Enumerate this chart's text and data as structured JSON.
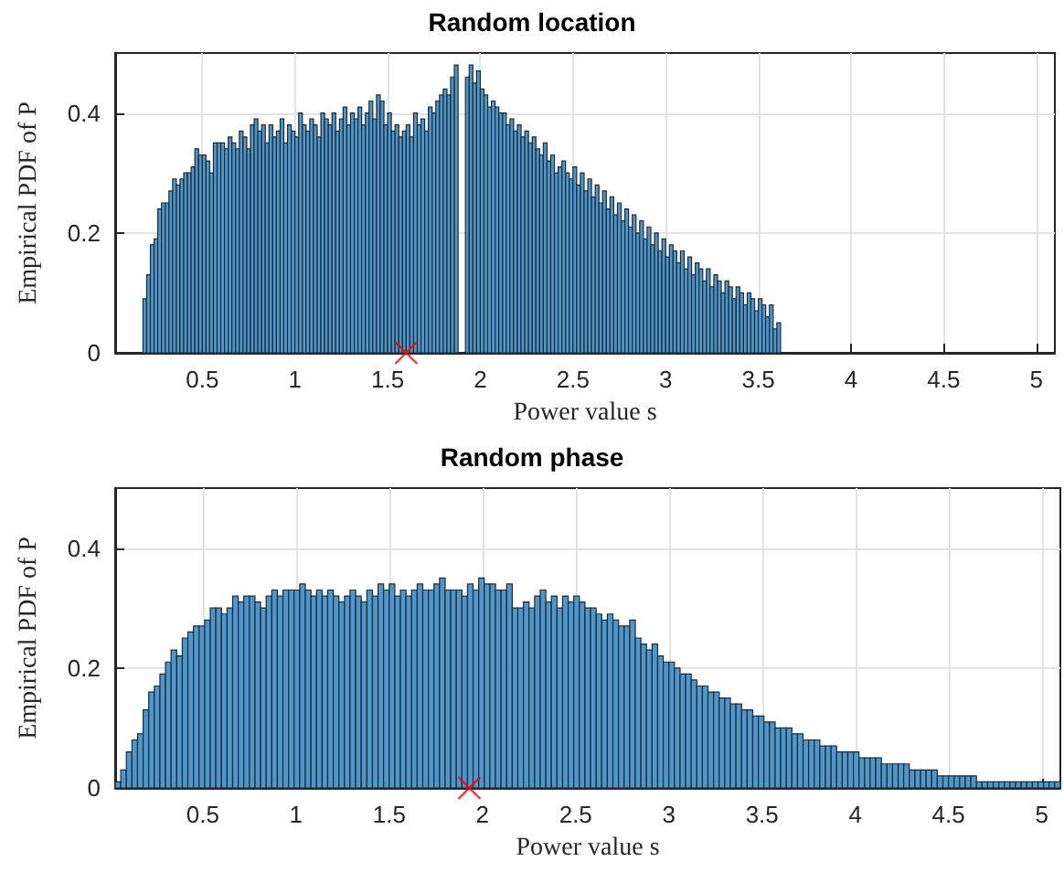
{
  "chart_data": [
    {
      "type": "histogram",
      "title": "Random location",
      "xlabel": "Power value s",
      "ylabel": "Empirical PDF of P",
      "xlim": [
        0.03,
        5.1
      ],
      "ylim": [
        0,
        0.5
      ],
      "xticks": [
        0.5,
        1,
        1.5,
        2,
        2.5,
        3,
        3.5,
        4,
        4.5,
        5
      ],
      "yticks": [
        0,
        0.2,
        0.4
      ],
      "grid": true,
      "series": [
        {
          "color": "#4d97cc",
          "bins": [
            0.18,
            0.2,
            0.22,
            0.24,
            0.26,
            0.28,
            0.3,
            0.32,
            0.34,
            0.36,
            0.38,
            0.4,
            0.42,
            0.44,
            0.46,
            0.48,
            0.5,
            0.52,
            0.54,
            0.56,
            0.58,
            0.6,
            0.62,
            0.64,
            0.66,
            0.68,
            0.7,
            0.72,
            0.74,
            0.76,
            0.78,
            0.8,
            0.82,
            0.84,
            0.86,
            0.88,
            0.9,
            0.92,
            0.94,
            0.96,
            0.98,
            1,
            1.02,
            1.04,
            1.06,
            1.08,
            1.1,
            1.12,
            1.14,
            1.16,
            1.18,
            1.2,
            1.22,
            1.24,
            1.26,
            1.28,
            1.3,
            1.32,
            1.34,
            1.36,
            1.38,
            1.4,
            1.42,
            1.44,
            1.46,
            1.48,
            1.5,
            1.52,
            1.54,
            1.56,
            1.58,
            1.6,
            1.62,
            1.64,
            1.66,
            1.68,
            1.7,
            1.72,
            1.74,
            1.76,
            1.78,
            1.8,
            1.82,
            1.84,
            1.86,
            1.88,
            1.9,
            1.92,
            1.94,
            1.96,
            1.98,
            2,
            2.02,
            2.04,
            2.06,
            2.08,
            2.1,
            2.12,
            2.14,
            2.16,
            2.18,
            2.2,
            2.22,
            2.24,
            2.26,
            2.28,
            2.3,
            2.32,
            2.34,
            2.36,
            2.38,
            2.4,
            2.42,
            2.44,
            2.46,
            2.48,
            2.5,
            2.52,
            2.54,
            2.56,
            2.58,
            2.6,
            2.62,
            2.64,
            2.66,
            2.68,
            2.7,
            2.72,
            2.74,
            2.76,
            2.78,
            2.8,
            2.82,
            2.84,
            2.86,
            2.88,
            2.9,
            2.92,
            2.94,
            2.96,
            2.98,
            3,
            3.02,
            3.04,
            3.06,
            3.08,
            3.1,
            3.12,
            3.14,
            3.16,
            3.18,
            3.2,
            3.22,
            3.24,
            3.26,
            3.28,
            3.3,
            3.32,
            3.34,
            3.36,
            3.38,
            3.4,
            3.42,
            3.44,
            3.46,
            3.48,
            3.5,
            3.52,
            3.54,
            3.56,
            3.58,
            3.6,
            3.62
          ],
          "values": [
            0.09,
            0.13,
            0.18,
            0.19,
            0.24,
            0.25,
            0.25,
            0.27,
            0.29,
            0.28,
            0.29,
            0.3,
            0.3,
            0.31,
            0.34,
            0.33,
            0.33,
            0.32,
            0.3,
            0.35,
            0.35,
            0.35,
            0.34,
            0.36,
            0.35,
            0.34,
            0.37,
            0.36,
            0.34,
            0.38,
            0.39,
            0.37,
            0.38,
            0.35,
            0.38,
            0.36,
            0.37,
            0.39,
            0.35,
            0.38,
            0.37,
            0.36,
            0.4,
            0.38,
            0.37,
            0.39,
            0.38,
            0.36,
            0.4,
            0.39,
            0.38,
            0.4,
            0.37,
            0.39,
            0.41,
            0.38,
            0.4,
            0.39,
            0.41,
            0.38,
            0.4,
            0.42,
            0.39,
            0.43,
            0.42,
            0.38,
            0.4,
            0.37,
            0.38,
            0.36,
            0.37,
            0.38,
            0.36,
            0.4,
            0.38,
            0.39,
            0.37,
            0.41,
            0.4,
            0.42,
            0.43,
            0.44,
            0.43,
            0.46,
            0.48,
            null,
            null,
            0.46,
            0.48,
            0.45,
            0.47,
            0.44,
            0.43,
            0.41,
            0.42,
            0.41,
            0.4,
            0.4,
            0.38,
            0.39,
            0.37,
            0.38,
            0.36,
            0.37,
            0.35,
            0.36,
            0.34,
            0.33,
            0.35,
            0.32,
            0.33,
            0.3,
            0.31,
            0.32,
            0.3,
            0.29,
            0.31,
            0.28,
            0.3,
            0.27,
            0.29,
            0.26,
            0.28,
            0.25,
            0.27,
            0.24,
            0.26,
            0.23,
            0.25,
            0.22,
            0.24,
            0.21,
            0.23,
            0.2,
            0.22,
            0.19,
            0.21,
            0.18,
            0.2,
            0.17,
            0.19,
            0.16,
            0.18,
            0.17,
            0.15,
            0.17,
            0.14,
            0.16,
            0.13,
            0.15,
            0.14,
            0.12,
            0.14,
            0.11,
            0.13,
            0.12,
            0.1,
            0.12,
            0.11,
            0.09,
            0.11,
            0.1,
            0.08,
            0.1,
            0.09,
            0.07,
            0.09,
            0.08,
            0.06,
            0.08,
            0.04,
            0.05
          ]
        },
        {
          "type": "scatter",
          "x": [
            1.6
          ],
          "values": [
            0
          ],
          "color": "#ff0000",
          "marker": "cross"
        }
      ]
    },
    {
      "type": "histogram",
      "title": "Random phase",
      "xlabel": "Power value s",
      "ylabel": "Empirical PDF of P",
      "xlim": [
        0.03,
        5.1
      ],
      "ylim": [
        0,
        0.5
      ],
      "xticks": [
        0.5,
        1,
        1.5,
        2,
        2.5,
        3,
        3.5,
        4,
        4.5,
        5
      ],
      "yticks": [
        0,
        0.2,
        0.4
      ],
      "grid": true,
      "series": [
        {
          "color": "#4d97cc",
          "bins": [
            0.03,
            0.06,
            0.09,
            0.12,
            0.15,
            0.18,
            0.21,
            0.24,
            0.27,
            0.3,
            0.33,
            0.36,
            0.39,
            0.42,
            0.45,
            0.48,
            0.51,
            0.54,
            0.57,
            0.6,
            0.63,
            0.66,
            0.69,
            0.72,
            0.75,
            0.78,
            0.81,
            0.84,
            0.87,
            0.9,
            0.93,
            0.96,
            0.99,
            1.02,
            1.05,
            1.08,
            1.11,
            1.14,
            1.17,
            1.2,
            1.23,
            1.26,
            1.29,
            1.32,
            1.35,
            1.38,
            1.41,
            1.44,
            1.47,
            1.5,
            1.53,
            1.56,
            1.59,
            1.62,
            1.65,
            1.68,
            1.71,
            1.74,
            1.77,
            1.8,
            1.83,
            1.86,
            1.89,
            1.92,
            1.95,
            1.98,
            2.01,
            2.04,
            2.07,
            2.1,
            2.13,
            2.16,
            2.19,
            2.22,
            2.25,
            2.28,
            2.31,
            2.34,
            2.37,
            2.4,
            2.43,
            2.46,
            2.49,
            2.52,
            2.55,
            2.58,
            2.61,
            2.64,
            2.67,
            2.7,
            2.73,
            2.76,
            2.79,
            2.82,
            2.85,
            2.88,
            2.91,
            2.94,
            2.97,
            3,
            3.03,
            3.06,
            3.09,
            3.12,
            3.15,
            3.18,
            3.21,
            3.24,
            3.27,
            3.3,
            3.33,
            3.36,
            3.39,
            3.42,
            3.45,
            3.48,
            3.51,
            3.54,
            3.57,
            3.6,
            3.63,
            3.66,
            3.69,
            3.72,
            3.75,
            3.78,
            3.81,
            3.84,
            3.87,
            3.9,
            3.93,
            3.96,
            3.99,
            4.02,
            4.05,
            4.08,
            4.11,
            4.14,
            4.17,
            4.2,
            4.23,
            4.26,
            4.29,
            4.32,
            4.35,
            4.38,
            4.41,
            4.44,
            4.47,
            4.5,
            4.53,
            4.56,
            4.59,
            4.62,
            4.65,
            4.68,
            4.71,
            4.74,
            4.77,
            4.8,
            4.83,
            4.86,
            4.89,
            4.92,
            4.95,
            4.98,
            5.01,
            5.04,
            5.07,
            5.1
          ],
          "values": [
            0.01,
            0.03,
            0.06,
            0.08,
            0.09,
            0.13,
            0.16,
            0.17,
            0.19,
            0.21,
            0.23,
            0.22,
            0.25,
            0.26,
            0.27,
            0.27,
            0.28,
            0.3,
            0.3,
            0.29,
            0.3,
            0.32,
            0.31,
            0.32,
            0.32,
            0.31,
            0.3,
            0.32,
            0.33,
            0.32,
            0.33,
            0.33,
            0.33,
            0.34,
            0.33,
            0.32,
            0.33,
            0.32,
            0.33,
            0.32,
            0.31,
            0.32,
            0.33,
            0.32,
            0.31,
            0.33,
            0.32,
            0.34,
            0.33,
            0.34,
            0.32,
            0.33,
            0.32,
            0.33,
            0.34,
            0.33,
            0.33,
            0.34,
            0.35,
            0.33,
            0.33,
            0.33,
            0.32,
            0.34,
            0.33,
            0.35,
            0.34,
            0.34,
            0.33,
            0.33,
            0.34,
            0.3,
            0.3,
            0.31,
            0.3,
            0.32,
            0.33,
            0.31,
            0.32,
            0.3,
            0.32,
            0.31,
            0.32,
            0.31,
            0.3,
            0.3,
            0.29,
            0.28,
            0.29,
            0.28,
            0.27,
            0.27,
            0.28,
            0.25,
            0.24,
            0.23,
            0.24,
            0.22,
            0.21,
            0.21,
            0.2,
            0.19,
            0.19,
            0.18,
            0.17,
            0.17,
            0.16,
            0.16,
            0.15,
            0.15,
            0.14,
            0.14,
            0.13,
            0.13,
            0.12,
            0.12,
            0.11,
            0.11,
            0.1,
            0.1,
            0.1,
            0.09,
            0.09,
            0.08,
            0.08,
            0.08,
            0.07,
            0.07,
            0.07,
            0.06,
            0.06,
            0.06,
            0.06,
            0.05,
            0.05,
            0.05,
            0.05,
            0.04,
            0.04,
            0.04,
            0.04,
            0.04,
            0.03,
            0.03,
            0.03,
            0.03,
            0.03,
            0.02,
            0.02,
            0.02,
            0.02,
            0.02,
            0.02,
            0.02,
            0.01,
            0.01,
            0.01,
            0.01,
            0.01,
            0.01,
            0.01,
            0.01,
            0.01,
            0.01,
            0.01,
            0.01,
            0.01,
            0.01,
            0.01
          ]
        },
        {
          "type": "scatter",
          "x": [
            1.93
          ],
          "values": [
            0
          ],
          "color": "#ff0000",
          "marker": "cross"
        }
      ]
    }
  ]
}
